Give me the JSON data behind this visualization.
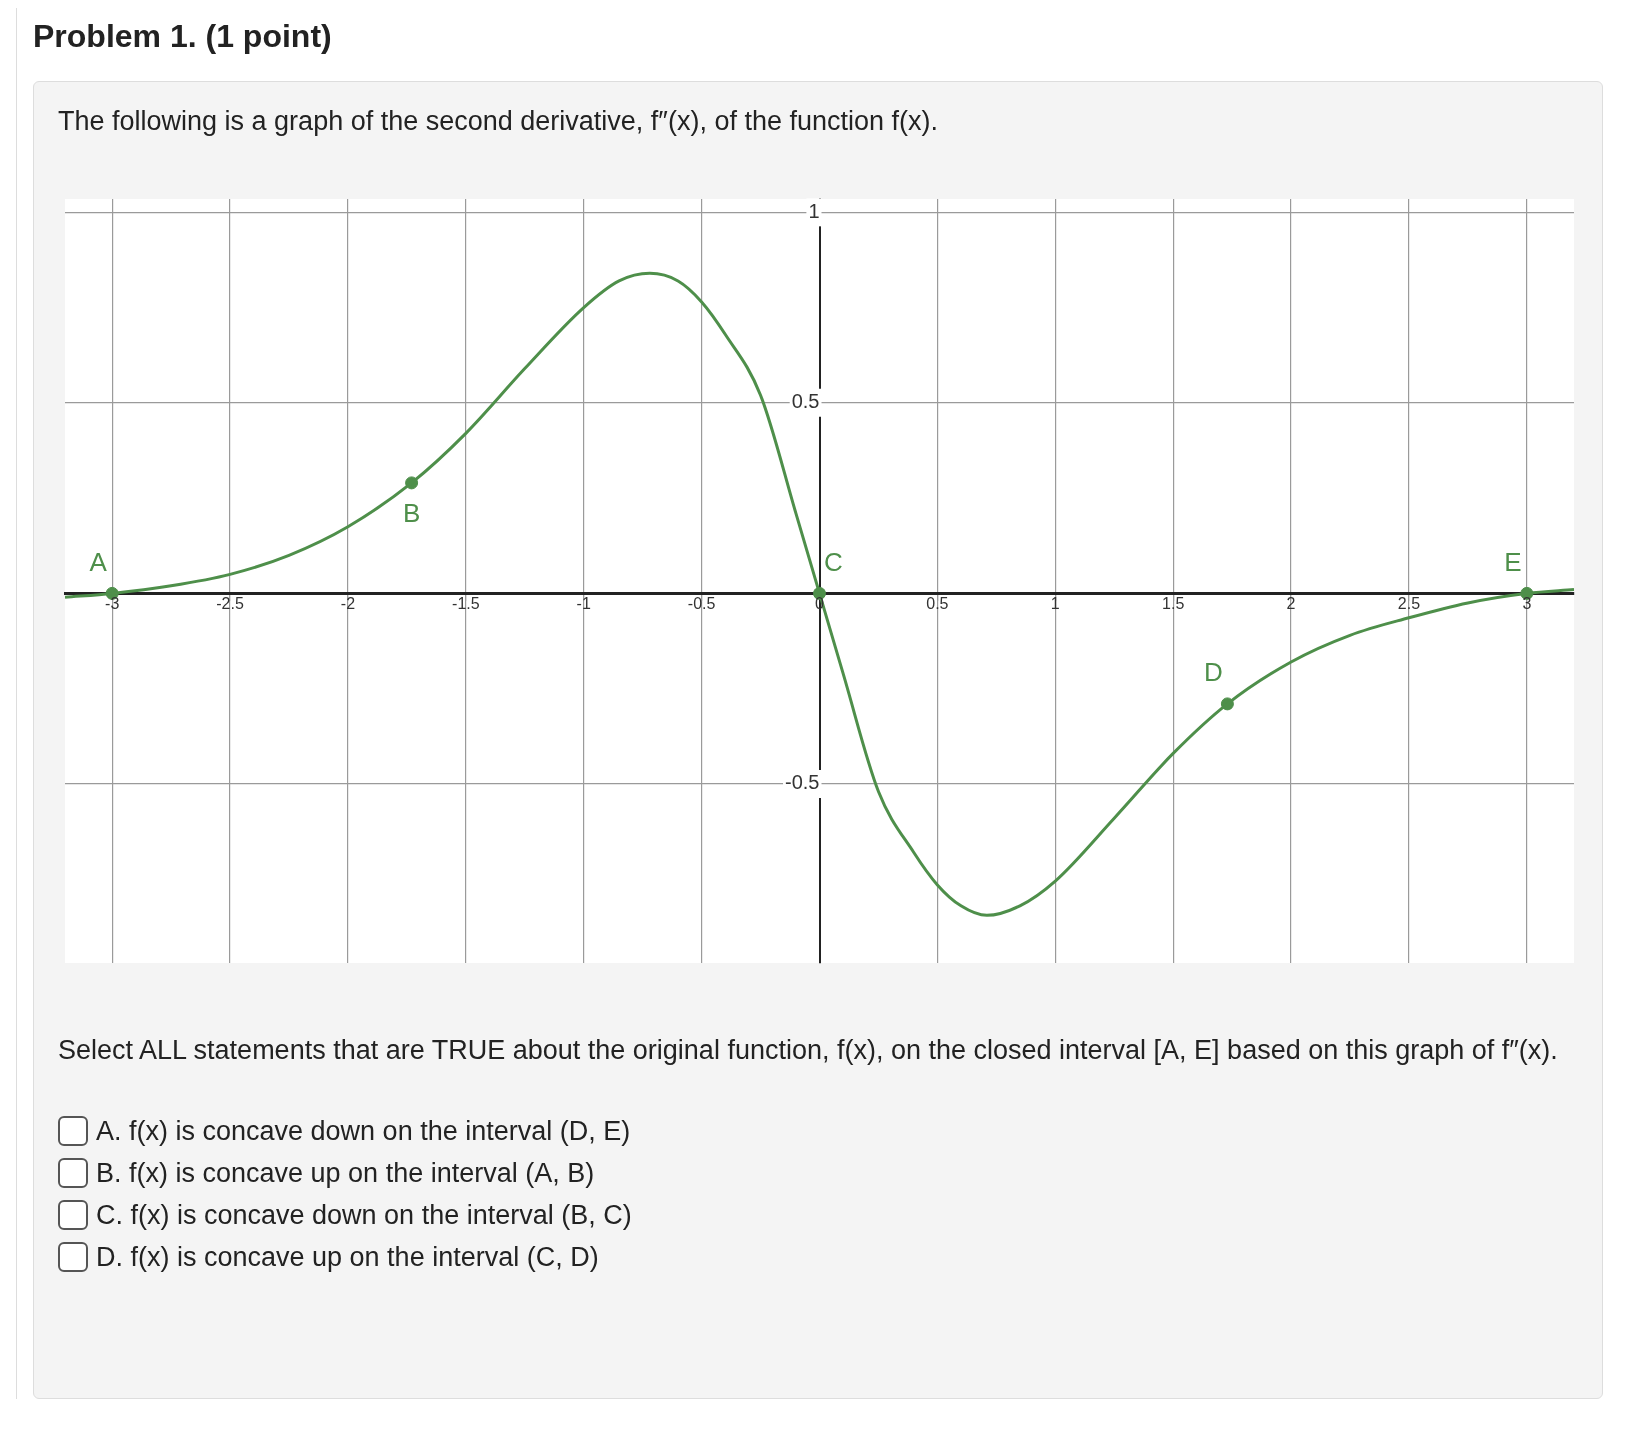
{
  "chart_data": {
    "type": "line",
    "title": "Problem 1. (1 point)",
    "subtitle": "The following is a graph of the second derivative, f″(x), of the function f(x).",
    "series": [
      {
        "type": "line",
        "color": "#4e8f4a",
        "x": [
          -3.2,
          -3,
          -2.75,
          -2.5,
          -2.25,
          -2,
          -1.73,
          -1.5,
          -1.25,
          -1,
          -0.85,
          -0.72,
          -0.6,
          -0.5,
          -0.4,
          -0.25,
          -0.1,
          0,
          0.1,
          0.25,
          0.4,
          0.5,
          0.6,
          0.71,
          0.85,
          1,
          1.25,
          1.5,
          1.73,
          2,
          2.25,
          2.5,
          2.75,
          3,
          3.2
        ],
        "values": [
          -0.01,
          0,
          0.02,
          0.05,
          0.1,
          0.175,
          0.29,
          0.42,
          0.59,
          0.75,
          0.82,
          0.84,
          0.82,
          0.765,
          0.68,
          0.52,
          0.21,
          0,
          -0.21,
          -0.52,
          -0.68,
          -0.765,
          -0.82,
          -0.845,
          -0.82,
          -0.755,
          -0.59,
          -0.42,
          -0.29,
          -0.18,
          -0.11,
          -0.064,
          -0.025,
          0,
          0.01
        ]
      },
      {
        "type": "scatter",
        "color": "#4e8f4a",
        "marker": "circle",
        "x": [
          -3,
          -1.73,
          0,
          1.73,
          3
        ],
        "values": [
          0,
          0.29,
          0,
          -0.29,
          0
        ]
      }
    ],
    "marker": "none",
    "xlim": [
      -3.2,
      3.2
    ],
    "ylim": [
      -0.97,
      1.035
    ],
    "xticks": [
      -3,
      -2.5,
      -2,
      -1.5,
      -1,
      -0.5,
      0,
      0.5,
      1,
      1.5,
      2,
      2.5,
      3
    ],
    "yticks": [
      -0.5,
      0.5,
      1
    ],
    "grid": true,
    "legend": false,
    "annotations": [
      {
        "text": "A",
        "x": -3,
        "y": 0
      },
      {
        "text": "B",
        "x": -1.73,
        "y": 0.29
      },
      {
        "text": "C",
        "x": 0,
        "y": 0
      },
      {
        "text": "D",
        "x": 1.73,
        "y": -0.29
      },
      {
        "text": "E",
        "x": 3,
        "y": 0
      },
      "Select ALL statements that are TRUE about the original function, f(x), on the closed interval [A, E] based on this graph of f″(x).",
      "A. f(x) is concave down on the interval (D, E)",
      "B. f(x) is concave up on the interval (A, B)",
      "C. f(x) is concave down on the interval (B, C)",
      "D. f(x) is concave up on the interval (C, D)"
    ]
  }
}
